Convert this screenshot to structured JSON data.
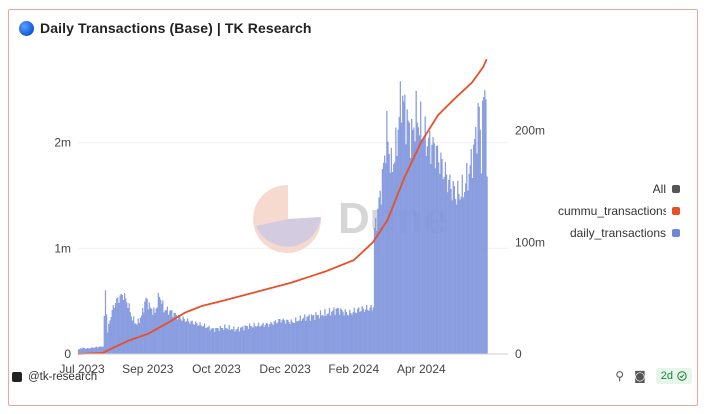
{
  "header": {
    "title": "Daily Transactions (Base) | TK Research",
    "icon": "globe-icon"
  },
  "watermark": {
    "text": "Dune"
  },
  "footer": {
    "handle": "@tk-research",
    "freshness": "2d",
    "icons": [
      "embed-link-icon",
      "camera-icon",
      "check-circle-icon"
    ]
  },
  "legend": {
    "items": [
      {
        "label": "All",
        "color": "#555555"
      },
      {
        "label": "cummu_transactions",
        "color": "#e8502a"
      },
      {
        "label": "daily_transactions",
        "color": "#6f86d6"
      }
    ]
  },
  "colors": {
    "bars": "#8fa2e3",
    "bar_edge": "#6f86d6",
    "line": "#e8502a",
    "grid": "#efefef"
  },
  "chart_data": {
    "type": "bar",
    "x_tick_labels": [
      "Jul 2023",
      "Sep 2023",
      "Oct 2023",
      "Dec 2023",
      "Feb 2024",
      "Apr 2024"
    ],
    "y_left": {
      "ticks": [
        "0",
        "1m",
        "2m"
      ],
      "ylim": [
        0,
        2800000
      ]
    },
    "y_right": {
      "ticks": [
        "0",
        "100m",
        "200m"
      ],
      "ylim": [
        0,
        265000000
      ]
    },
    "x_range_days": [
      0,
      382
    ],
    "tick_days": [
      0,
      62,
      123,
      184,
      245,
      305
    ],
    "series": [
      {
        "name": "daily_transactions",
        "kind": "bar",
        "axis": "left",
        "keypoints": [
          [
            0,
            40000
          ],
          [
            3,
            55000
          ],
          [
            8,
            50000
          ],
          [
            14,
            60000
          ],
          [
            22,
            70000
          ],
          [
            24,
            600000
          ],
          [
            26,
            200000
          ],
          [
            28,
            330000
          ],
          [
            32,
            470000
          ],
          [
            36,
            530000
          ],
          [
            40,
            560000
          ],
          [
            44,
            470000
          ],
          [
            48,
            330000
          ],
          [
            52,
            280000
          ],
          [
            56,
            360000
          ],
          [
            60,
            520000
          ],
          [
            64,
            430000
          ],
          [
            68,
            390000
          ],
          [
            72,
            560000
          ],
          [
            76,
            420000
          ],
          [
            82,
            400000
          ],
          [
            90,
            340000
          ],
          [
            100,
            300000
          ],
          [
            110,
            270000
          ],
          [
            120,
            230000
          ],
          [
            130,
            250000
          ],
          [
            140,
            230000
          ],
          [
            150,
            260000
          ],
          [
            160,
            270000
          ],
          [
            170,
            280000
          ],
          [
            180,
            320000
          ],
          [
            190,
            300000
          ],
          [
            200,
            340000
          ],
          [
            210,
            360000
          ],
          [
            220,
            380000
          ],
          [
            230,
            420000
          ],
          [
            240,
            380000
          ],
          [
            250,
            420000
          ],
          [
            260,
            430000
          ],
          [
            262,
            450000
          ],
          [
            263,
            1150000
          ],
          [
            266,
            1350000
          ],
          [
            270,
            1650000
          ],
          [
            274,
            2100000
          ],
          [
            278,
            1750000
          ],
          [
            282,
            1920000
          ],
          [
            285,
            2250000
          ],
          [
            287,
            2450000
          ],
          [
            289,
            2350000
          ],
          [
            292,
            2200000
          ],
          [
            296,
            2050000
          ],
          [
            300,
            2250000
          ],
          [
            304,
            2150000
          ],
          [
            310,
            2000000
          ],
          [
            316,
            1950000
          ],
          [
            322,
            1800000
          ],
          [
            330,
            1600000
          ],
          [
            336,
            1500000
          ],
          [
            342,
            1550000
          ],
          [
            348,
            1750000
          ],
          [
            352,
            1980000
          ],
          [
            356,
            2300000
          ],
          [
            358,
            1900000
          ],
          [
            360,
            2450000
          ],
          [
            362,
            2600000
          ],
          [
            363,
            1500000
          ]
        ]
      },
      {
        "name": "cummu_transactions",
        "kind": "line",
        "axis": "right",
        "keypoints": [
          [
            0,
            0
          ],
          [
            22,
            1000000
          ],
          [
            30,
            5000000
          ],
          [
            45,
            12000000
          ],
          [
            62,
            18000000
          ],
          [
            80,
            28000000
          ],
          [
            95,
            37000000
          ],
          [
            110,
            43000000
          ],
          [
            130,
            48000000
          ],
          [
            160,
            56000000
          ],
          [
            190,
            64000000
          ],
          [
            220,
            74000000
          ],
          [
            245,
            84000000
          ],
          [
            262,
            100000000
          ],
          [
            275,
            120000000
          ],
          [
            290,
            158000000
          ],
          [
            305,
            190000000
          ],
          [
            320,
            214000000
          ],
          [
            335,
            229000000
          ],
          [
            350,
            243000000
          ],
          [
            360,
            257000000
          ],
          [
            363,
            264000000
          ]
        ]
      }
    ],
    "grid": true,
    "legend_position": "right"
  }
}
